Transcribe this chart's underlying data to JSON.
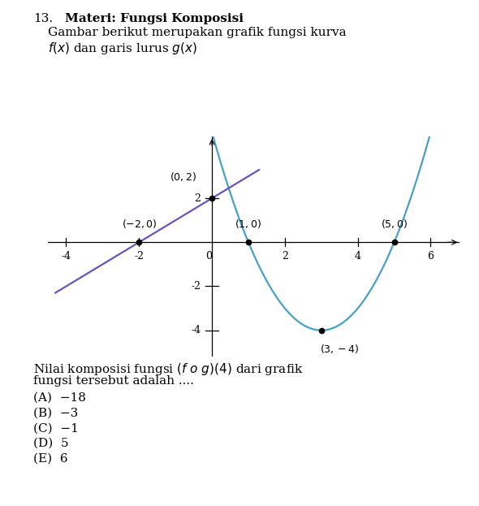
{
  "xlim": [
    -4.5,
    6.8
  ],
  "ylim": [
    -5.2,
    4.8
  ],
  "xticks": [
    -4,
    -2,
    2,
    4,
    6
  ],
  "yticks": [
    -4,
    -2,
    2
  ],
  "parabola_color": "#4a9fc4",
  "line_color": "#6655bb",
  "point_color": "#000000",
  "parabola_xrange": [
    0.0,
    6.35
  ],
  "line_xrange": [
    -4.3,
    1.3
  ],
  "background_color": "#ffffff",
  "title_num": "13.",
  "title_bold": "Materi: Fungsi Komposisi",
  "line1": "Gambar berikut merupakan grafik fungsi kurva",
  "line2": "f(x) dan garis lurus g(x)",
  "question_line1": "Nilai komposisi fungsi (f o g)(4) dari grafik",
  "question_line2": "fungsi tersebut adalah ....",
  "options": [
    "(A) −18",
    "(B) −3",
    "(C) −1",
    "(D) 5",
    "(E) 6"
  ],
  "fontsize_text": 11,
  "fontsize_axis": 9
}
